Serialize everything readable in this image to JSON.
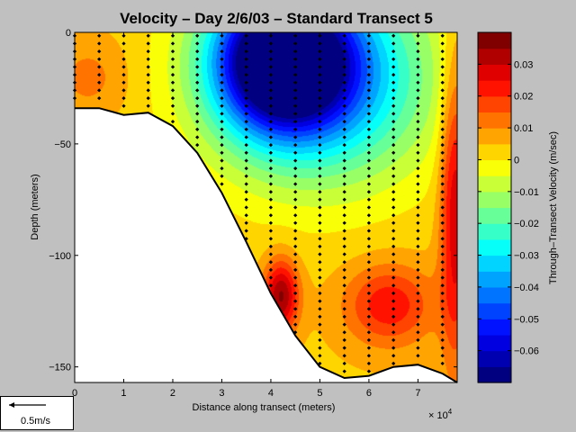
{
  "chart_data": {
    "type": "filled-contour",
    "title": "Velocity – Day 2/6/03 – Standard Transect 5",
    "xlabel": "Distance along transect (meters)",
    "x_exponent_label": "× 10",
    "x_exponent_power": "4",
    "ylabel": "Depth (meters)",
    "xlim": [
      0,
      78000
    ],
    "ylim": [
      -157,
      0
    ],
    "x_ticks": [
      0,
      10000,
      20000,
      30000,
      40000,
      50000,
      60000,
      70000
    ],
    "x_tick_labels": [
      "0",
      "1",
      "2",
      "3",
      "4",
      "5",
      "6",
      "7"
    ],
    "y_ticks": [
      0,
      -50,
      -100,
      -150
    ],
    "y_tick_labels": [
      "0",
      "−50",
      "−100",
      "−150"
    ],
    "colorbar": {
      "label": "Through–Transect Velocity (m/sec)",
      "range": [
        -0.07,
        0.04
      ],
      "ticks": [
        0.03,
        0.02,
        0.01,
        0,
        -0.01,
        -0.02,
        -0.03,
        -0.04,
        -0.05,
        -0.06
      ],
      "tick_labels": [
        "0.03",
        "0.02",
        "0.01",
        "0",
        "−0.01",
        "−0.02",
        "−0.03",
        "−0.04",
        "−0.05",
        "−0.06"
      ],
      "levels": 22
    },
    "bathymetry": [
      {
        "x": 0,
        "depth": -34
      },
      {
        "x": 5000,
        "depth": -34
      },
      {
        "x": 10000,
        "depth": -37
      },
      {
        "x": 15000,
        "depth": -36
      },
      {
        "x": 20000,
        "depth": -42
      },
      {
        "x": 25000,
        "depth": -54
      },
      {
        "x": 30000,
        "depth": -72
      },
      {
        "x": 35000,
        "depth": -94
      },
      {
        "x": 40000,
        "depth": -117
      },
      {
        "x": 45000,
        "depth": -136
      },
      {
        "x": 50000,
        "depth": -150
      },
      {
        "x": 55000,
        "depth": -155
      },
      {
        "x": 60000,
        "depth": -154
      },
      {
        "x": 65000,
        "depth": -150
      },
      {
        "x": 70000,
        "depth": -149
      },
      {
        "x": 75000,
        "depth": -153
      },
      {
        "x": 78000,
        "depth": -157
      }
    ],
    "velocity_features": [
      {
        "name": "surface outflow core",
        "x": 42000,
        "depth": -10,
        "value": -0.068
      },
      {
        "name": "slope inflow core",
        "x": 42000,
        "depth": -118,
        "value": 0.034
      },
      {
        "name": "deep inflow core",
        "x": 66000,
        "depth": -124,
        "value": 0.025
      },
      {
        "name": "east boundary inflow",
        "x": 77000,
        "depth": -80,
        "value": 0.028
      },
      {
        "name": "west shelf water",
        "x": 4000,
        "depth": -20,
        "value": 0.006
      }
    ],
    "station_spacing_m": 5000,
    "bin_depth_m": 3.5,
    "reference_arrow_label": "0.5m/s"
  }
}
